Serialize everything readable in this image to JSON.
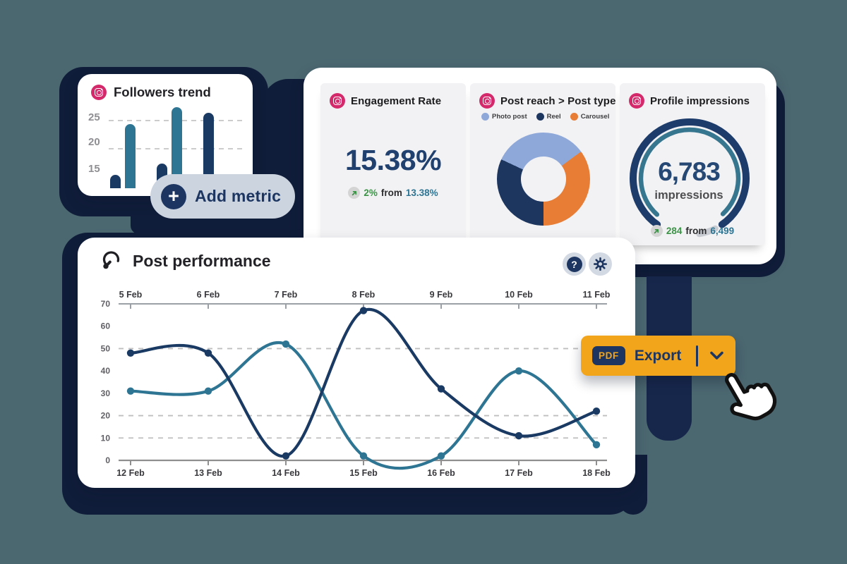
{
  "background_color": "#4b6770",
  "decor_navy": "#101d3a",
  "followers_card": {
    "icon": "instagram-icon",
    "title": "Followers trend",
    "y_labels": [
      "25",
      "20",
      "15"
    ]
  },
  "add_metric_button": {
    "label": "Add metric",
    "icon": "plus-icon"
  },
  "stats_panel": {
    "engagement_card": {
      "title": "Engagement Rate",
      "value": "15.38%",
      "delta": "2%",
      "from_word": "from",
      "previous": "13.38%"
    },
    "post_reach_card": {
      "title": "Post reach > Post type",
      "legend": [
        {
          "label": "Photo post",
          "color": "#8fa8da"
        },
        {
          "label": "Reel",
          "color": "#1d3660"
        },
        {
          "label": "Carousel",
          "color": "#e87d35"
        }
      ]
    },
    "impressions_card": {
      "title": "Profile impressions",
      "value": "6,783",
      "unit": "impressions",
      "delta": "284",
      "from_word": "from",
      "previous": "6,499"
    }
  },
  "performance_card": {
    "title": "Post performance",
    "help_label": "?"
  },
  "export_button": {
    "badge": "PDF",
    "label": "Export"
  },
  "chart_data": [
    {
      "id": "followers_trend",
      "type": "bar",
      "title": "Followers trend",
      "categories": [
        "group-1",
        "group-2",
        "group-3"
      ],
      "series": [
        {
          "name": "navy",
          "color": "#1a3a64",
          "values": [
            15,
            17,
            26
          ]
        },
        {
          "name": "teal",
          "color": "#2e7593",
          "values": [
            24,
            27,
            null
          ]
        }
      ],
      "yticks": [
        25,
        20,
        15
      ],
      "grid_dashed_at": [
        25,
        20
      ],
      "ylim": [
        12,
        28
      ]
    },
    {
      "id": "post_reach_by_type",
      "type": "pie",
      "title": "Post reach > Post type",
      "donut": true,
      "start_angle_deg": 295,
      "segments": [
        {
          "label": "Photo post",
          "value": 33,
          "color": "#8fa8da"
        },
        {
          "label": "Carousel",
          "value": 35,
          "color": "#e87d35"
        },
        {
          "label": "Reel",
          "value": 32,
          "color": "#1d3660"
        }
      ]
    },
    {
      "id": "profile_impressions_gauge",
      "type": "pie",
      "style": "gauge",
      "title": "Profile impressions",
      "value": 6783,
      "previous": 6499,
      "delta": 284,
      "arcs": [
        {
          "name": "outer-navy",
          "r": 80,
          "w": 10,
          "a0": 215,
          "a1": 505,
          "color": "#1d3c6b"
        },
        {
          "name": "inner-teal",
          "r": 69,
          "w": 6.5,
          "a0": 222,
          "a1": 497,
          "color": "#37768f"
        },
        {
          "name": "remainder-gray",
          "r": 80,
          "w": 9,
          "a0": 513,
          "a1": 530,
          "color": "#c8ccd2"
        }
      ]
    },
    {
      "id": "post_performance",
      "type": "line",
      "title": "Post performance",
      "x_top": [
        "5 Feb",
        "6 Feb",
        "7 Feb",
        "8 Feb",
        "9 Feb",
        "10 Feb",
        "11 Feb"
      ],
      "x_bottom": [
        "12 Feb",
        "13 Feb",
        "14 Feb",
        "15 Feb",
        "16 Feb",
        "17 Feb",
        "18 Feb"
      ],
      "ylim": [
        0,
        70
      ],
      "yticks": [
        70,
        60,
        50,
        40,
        30,
        20,
        10,
        0
      ],
      "grid_dashed_at": [
        50,
        20,
        10
      ],
      "series": [
        {
          "name": "series-teal",
          "color": "#2e7593",
          "values": [
            31,
            31,
            52,
            2,
            2,
            40,
            7
          ]
        },
        {
          "name": "series-navy",
          "color": "#1a3a64",
          "values": [
            48,
            48,
            2,
            67,
            32,
            11,
            22
          ]
        }
      ]
    }
  ]
}
